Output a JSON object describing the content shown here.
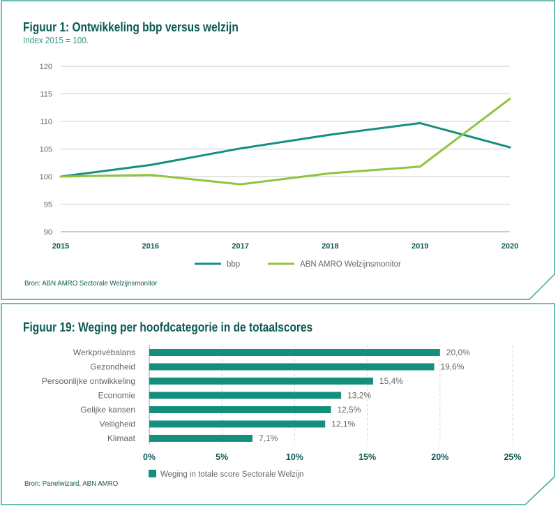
{
  "colors": {
    "teal": "#148f7e",
    "green": "#8cc53f",
    "frame": "#3aa899",
    "title": "#0c5a52",
    "grid": "#c8c8c8",
    "axis_label": "#666666"
  },
  "panel1": {
    "title": "Figuur 1: Ontwikkeling bbp versus welzijn",
    "subtitle": "Index 2015 = 100.",
    "source": "Bron: ABN AMRO Sectorale Welzijnsmonitor"
  },
  "panel2": {
    "title": "Figuur 19: Weging per hoofdcategorie in de totaalscores",
    "source": "Bron: Panelwizard, ABN AMRO"
  },
  "chart_data": [
    {
      "type": "line",
      "title": "Figuur 1: Ontwikkeling bbp versus welzijn",
      "subtitle": "Index 2015 = 100.",
      "x": [
        "2015",
        "2016",
        "2017",
        "2018",
        "2019",
        "2020"
      ],
      "ylim": [
        90,
        120
      ],
      "yticks": [
        90,
        95,
        100,
        105,
        110,
        115,
        120
      ],
      "grid": true,
      "legend": "bottom",
      "series": [
        {
          "name": "bbp",
          "color": "#148f7e",
          "values": [
            100,
            102.1,
            105.1,
            107.6,
            109.7,
            105.3
          ]
        },
        {
          "name": "ABN AMRO Welzijnsmonitor",
          "color": "#8cc53f",
          "values": [
            100,
            100.3,
            98.6,
            100.6,
            101.8,
            114.1
          ]
        }
      ]
    },
    {
      "type": "bar",
      "orientation": "horizontal",
      "title": "Figuur 19: Weging per hoofdcategorie in de totaalscores",
      "categories": [
        "Werkprivébalans",
        "Gezondheid",
        "Persoonlijke ontwikkeling",
        "Economie",
        "Gelijke kansen",
        "Veiligheid",
        "Klimaat"
      ],
      "values": [
        20.0,
        19.6,
        15.4,
        13.2,
        12.5,
        12.1,
        7.1
      ],
      "value_labels": [
        "20,0%",
        "19,6%",
        "15,4%",
        "13,2%",
        "12,5%",
        "12,1%",
        "7,1%"
      ],
      "xlim": [
        0,
        25
      ],
      "xticks": [
        0,
        5,
        10,
        15,
        20,
        25
      ],
      "xtick_labels": [
        "0%",
        "5%",
        "10%",
        "15%",
        "20%",
        "25%"
      ],
      "grid": true,
      "legend": "bottom",
      "series": [
        {
          "name": "Weging in totale score Sectorale Welzijn",
          "color": "#148f7e"
        }
      ]
    }
  ]
}
